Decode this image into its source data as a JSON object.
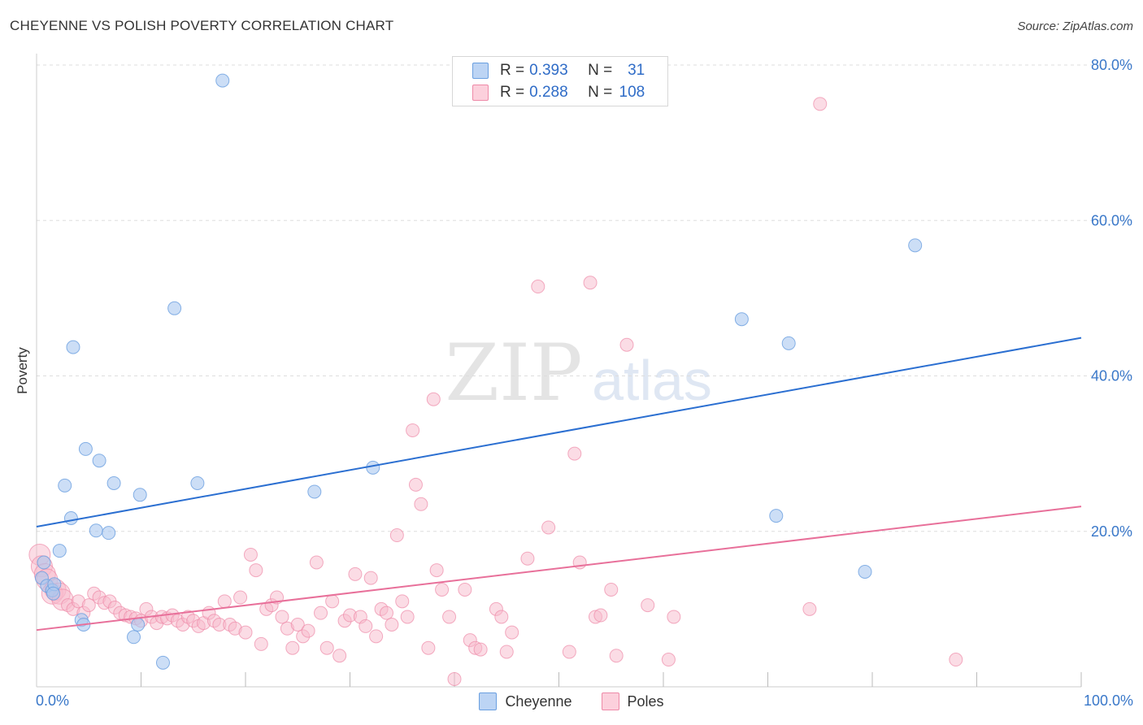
{
  "header": {
    "title": "CHEYENNE VS POLISH POVERTY CORRELATION CHART",
    "source": "Source: ZipAtlas.com"
  },
  "watermark": {
    "zip": "ZIP",
    "atlas": "atlas"
  },
  "legend": {
    "rows": [
      {
        "r_label": "R = ",
        "r_value": "0.393",
        "n_label": "N = ",
        "n_value": "31"
      },
      {
        "r_label": "R = ",
        "r_value": "0.288",
        "n_label": "N = ",
        "n_value": "108"
      }
    ]
  },
  "colors": {
    "cheyenne_fill": "#aac8f0",
    "cheyenne_stroke": "#6a9fe0",
    "cheyenne_line": "#2b6fd1",
    "poles_fill": "#f8b9cc",
    "poles_stroke": "#ee8aa8",
    "poles_line": "#e8709a",
    "tick_label": "#3a78c9",
    "grid": "#dddddd"
  },
  "chart_data": {
    "type": "scatter",
    "title": "CHEYENNE VS POLISH POVERTY CORRELATION CHART",
    "xlabel": "",
    "ylabel": "Poverty",
    "xlim": [
      0,
      100
    ],
    "ylim": [
      0,
      80
    ],
    "x_tick_labels": {
      "min": "0.0%",
      "max": "100.0%"
    },
    "y_ticks": [
      20,
      40,
      60,
      80
    ],
    "y_tick_labels": [
      "20.0%",
      "40.0%",
      "60.0%",
      "80.0%"
    ],
    "grid": "horizontal dashed",
    "legend_position": "top-center",
    "series": [
      {
        "name": "Cheyenne",
        "r": 0.393,
        "n": 31,
        "trend": {
          "x0": 0,
          "y0": 20.6,
          "x1": 100,
          "y1": 44.9
        },
        "points": [
          [
            0.5,
            14.0
          ],
          [
            0.7,
            16.0
          ],
          [
            1.0,
            13.0
          ],
          [
            1.5,
            12.4
          ],
          [
            1.7,
            13.2
          ],
          [
            2.2,
            17.5
          ],
          [
            2.7,
            25.9
          ],
          [
            3.3,
            21.7
          ],
          [
            3.5,
            43.7
          ],
          [
            4.3,
            8.6
          ],
          [
            4.5,
            8.0
          ],
          [
            4.7,
            30.6
          ],
          [
            5.7,
            20.1
          ],
          [
            6.0,
            29.1
          ],
          [
            6.9,
            19.8
          ],
          [
            7.4,
            26.2
          ],
          [
            9.3,
            6.4
          ],
          [
            9.7,
            8.0
          ],
          [
            9.9,
            24.7
          ],
          [
            12.1,
            3.1
          ],
          [
            13.2,
            48.7
          ],
          [
            15.4,
            26.2
          ],
          [
            17.8,
            78.0
          ],
          [
            26.6,
            25.1
          ],
          [
            32.2,
            28.2
          ],
          [
            67.5,
            47.3
          ],
          [
            70.8,
            22.0
          ],
          [
            72.0,
            44.2
          ],
          [
            79.3,
            14.8
          ],
          [
            84.1,
            56.8
          ],
          [
            1.6,
            12.0
          ]
        ]
      },
      {
        "name": "Poles",
        "r": 0.288,
        "n": 108,
        "trend": {
          "x0": 0,
          "y0": 7.3,
          "x1": 100,
          "y1": 23.2
        },
        "points": [
          [
            0.3,
            17.0
          ],
          [
            0.5,
            15.5
          ],
          [
            0.8,
            14.5
          ],
          [
            1.0,
            13.8
          ],
          [
            1.5,
            12.0
          ],
          [
            1.8,
            12.5
          ],
          [
            2.2,
            12.0
          ],
          [
            2.5,
            11.2
          ],
          [
            3.0,
            10.5
          ],
          [
            3.5,
            10.0
          ],
          [
            4.0,
            11.0
          ],
          [
            4.5,
            9.5
          ],
          [
            5.0,
            10.5
          ],
          [
            5.5,
            12.0
          ],
          [
            6.0,
            11.5
          ],
          [
            6.5,
            10.8
          ],
          [
            7.0,
            11.0
          ],
          [
            7.5,
            10.2
          ],
          [
            8.0,
            9.5
          ],
          [
            8.5,
            9.2
          ],
          [
            9.0,
            9.0
          ],
          [
            9.5,
            8.8
          ],
          [
            10.0,
            8.5
          ],
          [
            10.5,
            10.0
          ],
          [
            11.0,
            9.0
          ],
          [
            11.5,
            8.2
          ],
          [
            12.0,
            9.0
          ],
          [
            12.5,
            8.8
          ],
          [
            13.0,
            9.2
          ],
          [
            13.5,
            8.5
          ],
          [
            14.0,
            8.0
          ],
          [
            14.5,
            9.0
          ],
          [
            15.0,
            8.5
          ],
          [
            15.5,
            7.8
          ],
          [
            16.0,
            8.2
          ],
          [
            16.5,
            9.5
          ],
          [
            17.0,
            8.5
          ],
          [
            17.5,
            8.0
          ],
          [
            18.0,
            11.0
          ],
          [
            18.5,
            8.0
          ],
          [
            19.0,
            7.5
          ],
          [
            19.5,
            11.5
          ],
          [
            20.0,
            7.0
          ],
          [
            20.5,
            17.0
          ],
          [
            21.0,
            15.0
          ],
          [
            21.5,
            5.5
          ],
          [
            22.0,
            10.0
          ],
          [
            22.5,
            10.5
          ],
          [
            23.0,
            11.5
          ],
          [
            23.5,
            9.0
          ],
          [
            24.0,
            7.5
          ],
          [
            24.5,
            5.0
          ],
          [
            25.0,
            8.0
          ],
          [
            25.5,
            6.5
          ],
          [
            26.0,
            7.2
          ],
          [
            26.8,
            16.0
          ],
          [
            27.2,
            9.5
          ],
          [
            27.8,
            5.0
          ],
          [
            28.3,
            11.0
          ],
          [
            29.0,
            4.0
          ],
          [
            29.5,
            8.5
          ],
          [
            30.0,
            9.2
          ],
          [
            30.5,
            14.5
          ],
          [
            31.0,
            9.0
          ],
          [
            31.5,
            7.8
          ],
          [
            32.0,
            14.0
          ],
          [
            32.5,
            6.5
          ],
          [
            33.0,
            10.0
          ],
          [
            33.5,
            9.5
          ],
          [
            34.0,
            8.0
          ],
          [
            34.5,
            19.5
          ],
          [
            35.0,
            11.0
          ],
          [
            35.5,
            9.0
          ],
          [
            36.0,
            33.0
          ],
          [
            36.3,
            26.0
          ],
          [
            36.8,
            23.5
          ],
          [
            37.5,
            5.0
          ],
          [
            38.0,
            37.0
          ],
          [
            38.3,
            15.0
          ],
          [
            38.8,
            12.5
          ],
          [
            39.5,
            9.0
          ],
          [
            40.0,
            1.0
          ],
          [
            41.0,
            12.5
          ],
          [
            41.5,
            6.0
          ],
          [
            42.0,
            5.0
          ],
          [
            42.5,
            4.8
          ],
          [
            44.0,
            10.0
          ],
          [
            44.5,
            9.0
          ],
          [
            45.0,
            4.5
          ],
          [
            45.5,
            7.0
          ],
          [
            47.0,
            16.5
          ],
          [
            48.0,
            51.5
          ],
          [
            49.0,
            20.5
          ],
          [
            51.0,
            4.5
          ],
          [
            51.5,
            30.0
          ],
          [
            52.0,
            16.0
          ],
          [
            53.0,
            52.0
          ],
          [
            53.5,
            9.0
          ],
          [
            54.0,
            9.2
          ],
          [
            55.0,
            12.5
          ],
          [
            55.5,
            4.0
          ],
          [
            56.5,
            44.0
          ],
          [
            58.5,
            10.5
          ],
          [
            60.5,
            3.5
          ],
          [
            61.0,
            9.0
          ],
          [
            75.0,
            75.0
          ],
          [
            74.0,
            10.0
          ],
          [
            88.0,
            3.5
          ]
        ]
      }
    ]
  },
  "bottom_legend": [
    "Cheyenne",
    "Poles"
  ]
}
